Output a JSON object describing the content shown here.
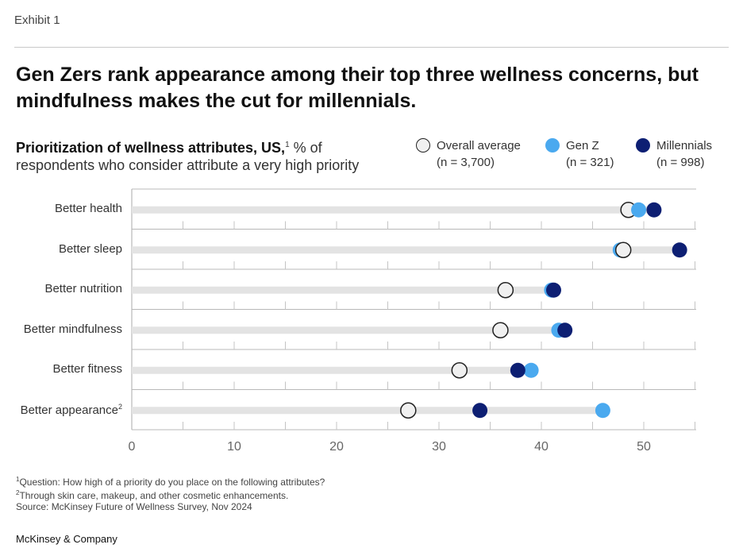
{
  "exhibit": "Exhibit 1",
  "headline": "Gen Zers rank appearance among their top three wellness concerns, but mindfulness makes the cut for millennials.",
  "subtitle": {
    "bold": "Prioritization of wellness attributes, US,",
    "sup": "1",
    "rest": " % of respondents who consider attribute a very high priority"
  },
  "legend": [
    {
      "name": "Overall average",
      "n": "(n = 3,700)",
      "color": "#f0f0f0",
      "stroke": "#222222"
    },
    {
      "name": "Gen Z",
      "n": "(n = 321)",
      "color": "#4aa9ef",
      "stroke": "#4aa9ef"
    },
    {
      "name": "Millennials",
      "n": "(n = 998)",
      "color": "#0d1f73",
      "stroke": "#0d1f73"
    }
  ],
  "chart_data": {
    "type": "scatter",
    "title": "Prioritization of wellness attributes, US, % of respondents who consider attribute a very high priority",
    "categories": [
      "Better health",
      "Better sleep",
      "Better nutrition",
      "Better mindfulness",
      "Better fitness",
      "Better appearance"
    ],
    "category_sups": [
      "",
      "",
      "",
      "",
      "",
      "2"
    ],
    "series": [
      {
        "name": "Overall average",
        "values": [
          48.5,
          48.0,
          36.5,
          36.0,
          32.0,
          27.0
        ]
      },
      {
        "name": "Gen Z",
        "values": [
          49.5,
          47.7,
          41.0,
          41.7,
          39.0,
          46.0
        ]
      },
      {
        "name": "Millennials",
        "values": [
          51.0,
          53.5,
          41.2,
          42.3,
          37.7,
          34.0
        ]
      }
    ],
    "xlim": [
      0,
      55
    ],
    "xticks": [
      "0",
      "10",
      "20",
      "30",
      "40",
      "50"
    ],
    "xtick_values": [
      0,
      10,
      20,
      30,
      40,
      50
    ]
  },
  "footnotes": [
    {
      "sup": "1",
      "text": "Question: How high of a priority do you place on the following attributes?"
    },
    {
      "sup": "2",
      "text": "Through skin care, makeup, and other cosmetic enhancements."
    },
    {
      "sup": "",
      "text": " Source: McKinsey Future of Wellness Survey, Nov 2024"
    }
  ],
  "brand": "McKinsey & Company"
}
